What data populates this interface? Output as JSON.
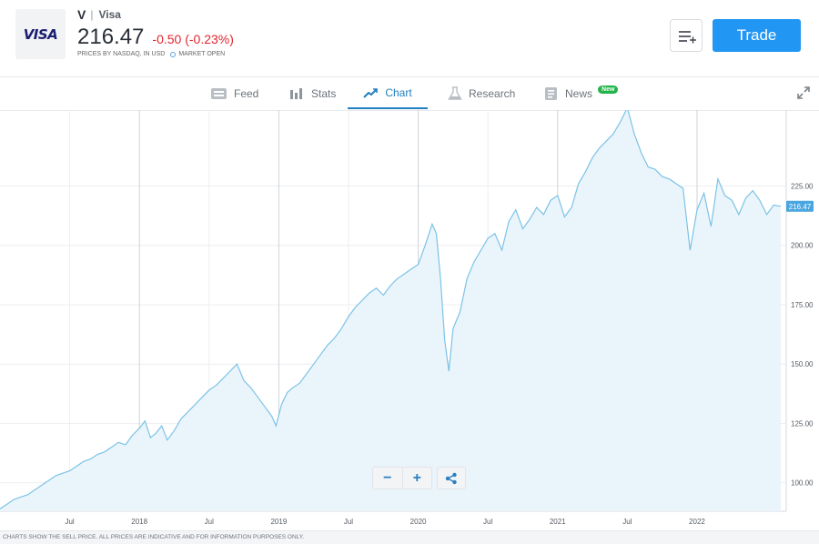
{
  "instrument": {
    "logo_text": "VISA",
    "ticker": "V",
    "separator": "|",
    "name": "Visa",
    "price": "216.47",
    "change": "-0.50 (-0.23%)",
    "prices_by": "PRICES BY NASDAQ, IN USD",
    "market_status": "MARKET OPEN"
  },
  "actions": {
    "trade_label": "Trade",
    "watchlist_icon": "add-to-watchlist-icon"
  },
  "tabs": [
    {
      "label": "Feed",
      "icon": "feed-icon"
    },
    {
      "label": "Stats",
      "icon": "stats-icon"
    },
    {
      "label": "Chart",
      "icon": "chart-icon",
      "active": true
    },
    {
      "label": "Research",
      "icon": "flask-icon"
    },
    {
      "label": "News",
      "icon": "news-icon",
      "badge": "New"
    }
  ],
  "colors": {
    "accent": "#2196f3",
    "negative": "#e0262f",
    "line": "#7cc3e6",
    "area": "#eaf4fb",
    "badge": "#23b34a"
  },
  "chart_data": {
    "type": "area",
    "current_price_label": "216.47",
    "current_price": 216.47,
    "ylim": [
      88,
      257
    ],
    "y_ticks": [
      100,
      125,
      150,
      175,
      200,
      225
    ],
    "y_tick_labels": [
      "100.00",
      "125.00",
      "150.00",
      "175.00",
      "200.00",
      "225.00"
    ],
    "x_ticks": [
      {
        "label": "Jul",
        "t": 2017.5
      },
      {
        "label": "2018",
        "t": 2018.0
      },
      {
        "label": "Jul",
        "t": 2018.5
      },
      {
        "label": "2019",
        "t": 2019.0
      },
      {
        "label": "Jul",
        "t": 2019.5
      },
      {
        "label": "2020",
        "t": 2020.0
      },
      {
        "label": "Jul",
        "t": 2020.5
      },
      {
        "label": "2021",
        "t": 2021.0
      },
      {
        "label": "Jul",
        "t": 2021.5
      },
      {
        "label": "2022",
        "t": 2022.0
      }
    ],
    "xlim": [
      2017.0,
      2022.64
    ],
    "series": [
      {
        "t": [
          2017.0,
          2017.05,
          2017.1,
          2017.15,
          2017.2,
          2017.25,
          2017.3,
          2017.35,
          2017.4,
          2017.45,
          2017.5,
          2017.55,
          2017.6,
          2017.65,
          2017.7,
          2017.75,
          2017.8,
          2017.85,
          2017.9,
          2017.95,
          2018.0,
          2018.04,
          2018.08,
          2018.12,
          2018.16,
          2018.2,
          2018.25,
          2018.3,
          2018.35,
          2018.4,
          2018.45,
          2018.5,
          2018.55,
          2018.6,
          2018.65,
          2018.7,
          2018.75,
          2018.8,
          2018.85,
          2018.9,
          2018.95,
          2018.98,
          2019.02,
          2019.06,
          2019.1,
          2019.15,
          2019.2,
          2019.25,
          2019.3,
          2019.35,
          2019.4,
          2019.45,
          2019.5,
          2019.55,
          2019.6,
          2019.65,
          2019.7,
          2019.75,
          2019.8,
          2019.85,
          2019.9,
          2019.95,
          2020.0,
          2020.05,
          2020.1,
          2020.13,
          2020.16,
          2020.19,
          2020.22,
          2020.25,
          2020.3,
          2020.35,
          2020.4,
          2020.45,
          2020.5,
          2020.55,
          2020.6,
          2020.65,
          2020.7,
          2020.75,
          2020.8,
          2020.85,
          2020.9,
          2020.95,
          2021.0,
          2021.05,
          2021.1,
          2021.15,
          2021.2,
          2021.25,
          2021.3,
          2021.35,
          2021.4,
          2021.45,
          2021.5,
          2021.55,
          2021.6,
          2021.65,
          2021.7,
          2021.75,
          2021.8,
          2021.85,
          2021.9,
          2021.95,
          2022.0,
          2022.05,
          2022.1,
          2022.15,
          2022.2,
          2022.25,
          2022.3,
          2022.35,
          2022.4,
          2022.45,
          2022.5,
          2022.55,
          2022.6
        ],
        "y": [
          89,
          91,
          93,
          94,
          95,
          97,
          99,
          101,
          103,
          104,
          105,
          107,
          109,
          110,
          112,
          113,
          115,
          117,
          116,
          120,
          123,
          126,
          119,
          121,
          124,
          118,
          122,
          127,
          130,
          133,
          136,
          139,
          141,
          144,
          147,
          150,
          143,
          140,
          136,
          132,
          128,
          124,
          133,
          138,
          140,
          142,
          146,
          150,
          154,
          158,
          161,
          165,
          170,
          174,
          177,
          180,
          182,
          179,
          183,
          186,
          188,
          190,
          192,
          200,
          209,
          205,
          186,
          160,
          147,
          165,
          172,
          186,
          193,
          198,
          203,
          205,
          198,
          210,
          215,
          207,
          211,
          216,
          213,
          219,
          221,
          212,
          216,
          226,
          231,
          237,
          241,
          244,
          247,
          252,
          258,
          247,
          239,
          233,
          232,
          229,
          228,
          226,
          224,
          198,
          215,
          222,
          208,
          228,
          221,
          219,
          213,
          220,
          223,
          219,
          213,
          217,
          216.47
        ]
      }
    ]
  },
  "controls": {
    "zoom_out": "−",
    "zoom_in": "+",
    "share_icon": "share-icon"
  },
  "footer": {
    "disclaimer": "CHARTS SHOW THE SELL PRICE. ALL PRICES ARE INDICATIVE AND FOR INFORMATION PURPOSES ONLY."
  }
}
